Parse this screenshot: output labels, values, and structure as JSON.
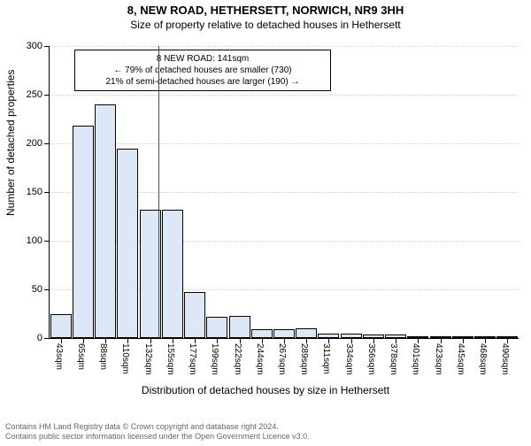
{
  "title": "8, NEW ROAD, HETHERSETT, NORWICH, NR9 3HH",
  "subtitle": "Size of property relative to detached houses in Hethersett",
  "chart": {
    "type": "histogram",
    "y_axis_label": "Number of detached properties",
    "x_axis_label": "Distribution of detached houses by size in Hethersett",
    "ylim": [
      0,
      300
    ],
    "ytick_step": 50,
    "yticks": [
      0,
      50,
      100,
      150,
      200,
      250,
      300
    ],
    "background_color": "#ffffff",
    "grid_color": "rgba(0,0,0,0.18)",
    "bar_fill": "#dce8f6",
    "bar_stroke": "#000000",
    "reference_line": {
      "value": 141,
      "color": "#ff0000",
      "width": 1
    },
    "x_tick_labels": [
      "43sqm",
      "65sqm",
      "88sqm",
      "110sqm",
      "132sqm",
      "155sqm",
      "177sqm",
      "199sqm",
      "222sqm",
      "244sqm",
      "267sqm",
      "289sqm",
      "311sqm",
      "334sqm",
      "356sqm",
      "378sqm",
      "401sqm",
      "423sqm",
      "445sqm",
      "468sqm",
      "490sqm"
    ],
    "bar_values": [
      25,
      218,
      240,
      195,
      132,
      132,
      47,
      22,
      23,
      9,
      9,
      10,
      5,
      5,
      4,
      4,
      1,
      1,
      1,
      1,
      1
    ]
  },
  "annotation": {
    "line1": "8 NEW ROAD: 141sqm",
    "line2": "← 79% of detached houses are smaller (730)",
    "line3": "21% of semi-detached houses are larger (190) →"
  },
  "footer": {
    "line1": "Contains HM Land Registry data © Crown copyright and database right 2024.",
    "line2": "Contains public sector information licensed under the Open Government Licence v3.0."
  }
}
